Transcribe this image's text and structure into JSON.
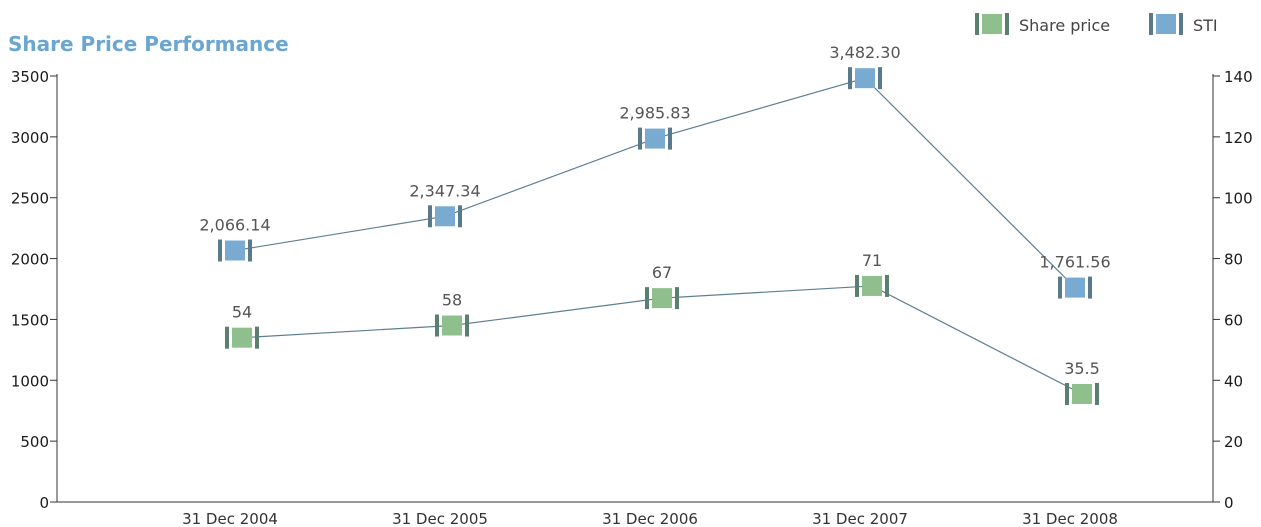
{
  "chart_data": {
    "type": "line",
    "title": "Share Price Performance",
    "categories": [
      "31 Dec 2004",
      "31 Dec 2005",
      "31 Dec 2006",
      "31 Dec 2007",
      "31 Dec 2008"
    ],
    "y_left": {
      "ticks": [
        "0",
        "500",
        "1000",
        "1500",
        "2000",
        "2500",
        "3000",
        "3500"
      ],
      "ylim": [
        0,
        3500
      ]
    },
    "y_right": {
      "ticks": [
        "0",
        "20",
        "40",
        "60",
        "80",
        "100",
        "120",
        "140"
      ],
      "ylim": [
        0,
        140
      ]
    },
    "legend_position": "top-right",
    "series": [
      {
        "name": "Share price",
        "axis": "right",
        "color": "#8fbf8c",
        "edge_color": "#5a7f6e",
        "values": [
          54,
          58,
          67,
          71,
          35.5
        ],
        "labels": [
          "54",
          "58",
          "67",
          "71",
          "35.5"
        ]
      },
      {
        "name": "STI",
        "axis": "left",
        "color": "#79abd2",
        "edge_color": "#5a7a8c",
        "values": [
          2066.14,
          2347.34,
          2985.83,
          3482.3,
          1761.56
        ],
        "labels": [
          "2,066.14",
          "2,347.34",
          "2,985.83",
          "3,482.30",
          "1,761.56"
        ]
      }
    ]
  }
}
